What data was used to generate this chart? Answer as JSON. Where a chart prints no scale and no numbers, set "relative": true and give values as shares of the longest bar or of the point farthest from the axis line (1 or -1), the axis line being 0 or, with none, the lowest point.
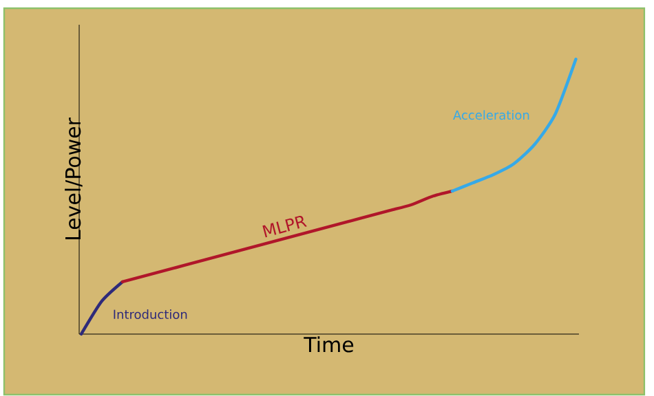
{
  "chart_data": {
    "type": "line",
    "relative": true,
    "xlabel": "Time",
    "ylabel": "Level/Power",
    "categories": [
      null,
      null,
      null,
      null,
      null,
      null,
      null,
      null,
      null,
      null,
      null,
      null,
      null,
      null,
      null,
      null,
      null,
      null,
      null,
      null,
      null,
      null,
      null,
      null,
      null
    ],
    "series": [
      {
        "name": "Introduction",
        "color": "#2e2a7a",
        "values": [
          0,
          0.12,
          0.19,
          null,
          null,
          null,
          null,
          null,
          null,
          null,
          null,
          null,
          null,
          null,
          null,
          null,
          null,
          null,
          null,
          null,
          null,
          null,
          null,
          null,
          null
        ]
      },
      {
        "name": "MLPR",
        "color": "#b0162a",
        "values": [
          null,
          null,
          0.19,
          0.21,
          0.23,
          0.25,
          0.27,
          0.29,
          0.31,
          0.33,
          0.35,
          0.37,
          0.39,
          0.41,
          0.43,
          0.45,
          0.47,
          0.5,
          0.52,
          null,
          null,
          null,
          null,
          null,
          null
        ]
      },
      {
        "name": "Acceleration",
        "color": "#36a9e8",
        "values": [
          null,
          null,
          null,
          null,
          null,
          null,
          null,
          null,
          null,
          null,
          null,
          null,
          null,
          null,
          null,
          null,
          null,
          null,
          0.52,
          0.55,
          0.58,
          0.62,
          0.69,
          0.8,
          1.0
        ]
      }
    ]
  }
}
